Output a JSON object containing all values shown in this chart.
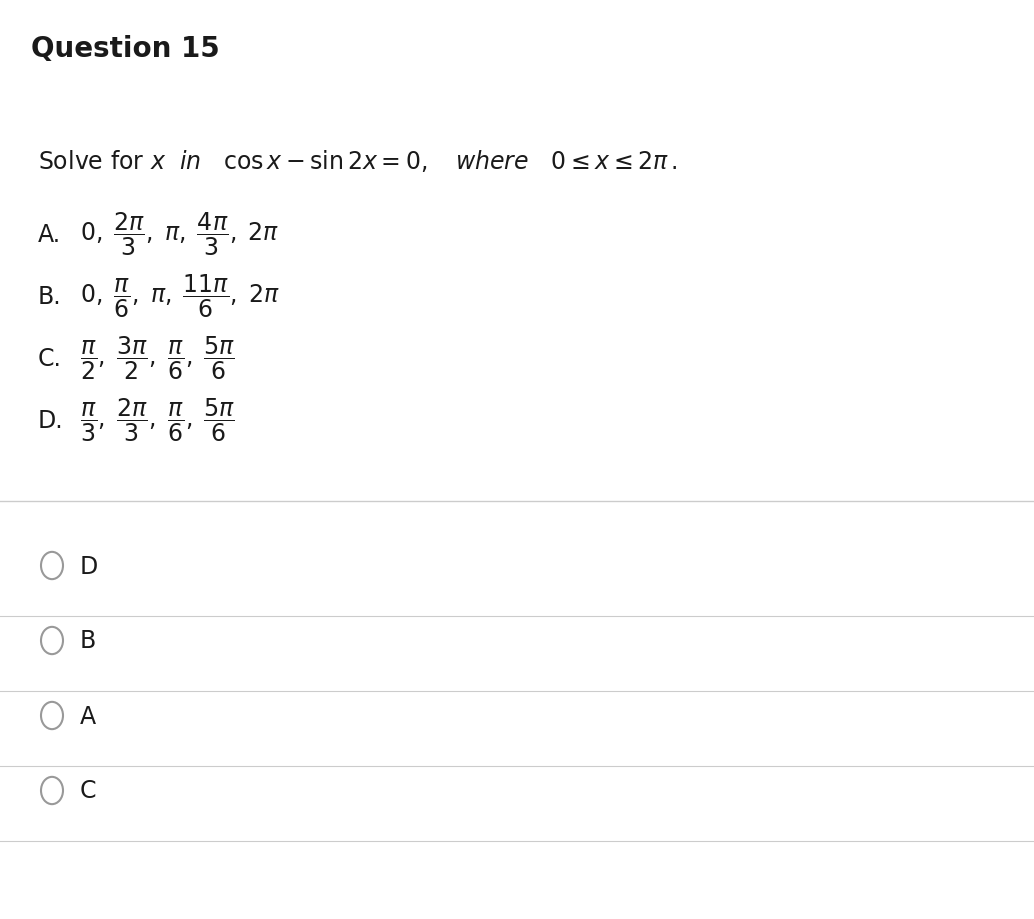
{
  "title": "Question 15",
  "title_bg": "#ebebeb",
  "title_fontsize": 20,
  "title_fontweight": "bold",
  "body_bg": "#ffffff",
  "question_line1": "Solve for $x$  $\\mathit{in}$   $\\cos x - \\sin 2x = 0,$   $\\mathit{where}$   $0 \\leq x \\leq 2\\pi\\,.$",
  "opt_A_label": "A.",
  "opt_A_content": "$0, \\;\\dfrac{2\\pi}{3},\\; \\pi, \\;\\dfrac{4\\pi}{3},\\; 2\\pi$",
  "opt_B_label": "B.",
  "opt_B_content": "$0, \\;\\dfrac{\\pi}{6},\\; \\pi, \\;\\dfrac{11\\pi}{6},\\; 2\\pi$",
  "opt_C_label": "C.",
  "opt_C_content": "$\\dfrac{\\pi}{2},\\; \\dfrac{3\\pi}{2},\\; \\dfrac{\\pi}{6},\\; \\dfrac{5\\pi}{6}$",
  "opt_D_label": "D.",
  "opt_D_content": "$\\dfrac{\\pi}{3},\\; \\dfrac{2\\pi}{3},\\; \\dfrac{\\pi}{6},\\; \\dfrac{5\\pi}{6}$",
  "radio_options": [
    "D",
    "B",
    "A",
    "C"
  ],
  "separator_color": "#cccccc",
  "text_color": "#1a1a1a",
  "option_label_fontsize": 17,
  "option_content_fontsize": 17,
  "radio_fontsize": 17,
  "figwidth": 10.34,
  "figheight": 9.2,
  "dpi": 100
}
